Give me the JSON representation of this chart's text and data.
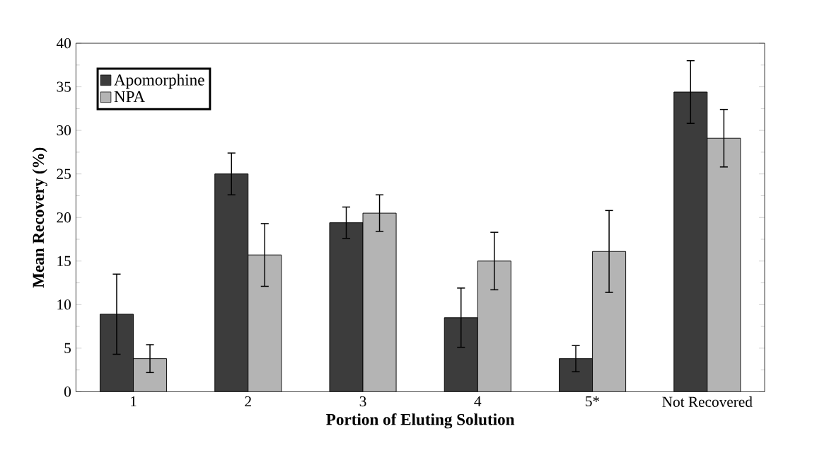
{
  "chart_data": {
    "type": "bar",
    "xlabel": "Portion of Eluting Solution",
    "ylabel": "Mean Recovery (%)",
    "categories": [
      "1",
      "2",
      "3",
      "4",
      "5*",
      "Not Recovered"
    ],
    "series": [
      {
        "name": "Apomorphine",
        "color": "#3c3c3c",
        "values": [
          8.9,
          25.0,
          19.4,
          8.5,
          3.8,
          34.4
        ],
        "errors": [
          4.6,
          2.4,
          1.8,
          3.4,
          1.5,
          3.6
        ]
      },
      {
        "name": "NPA",
        "color": "#b4b4b4",
        "values": [
          3.8,
          15.7,
          20.5,
          15.0,
          16.1,
          29.1
        ],
        "errors": [
          1.6,
          3.6,
          2.1,
          3.3,
          4.7,
          3.3
        ]
      }
    ],
    "ylim": [
      0,
      40
    ],
    "yticks": [
      0,
      5,
      10,
      15,
      20,
      25,
      30,
      35,
      40
    ],
    "legend": "top left",
    "grid": false
  }
}
